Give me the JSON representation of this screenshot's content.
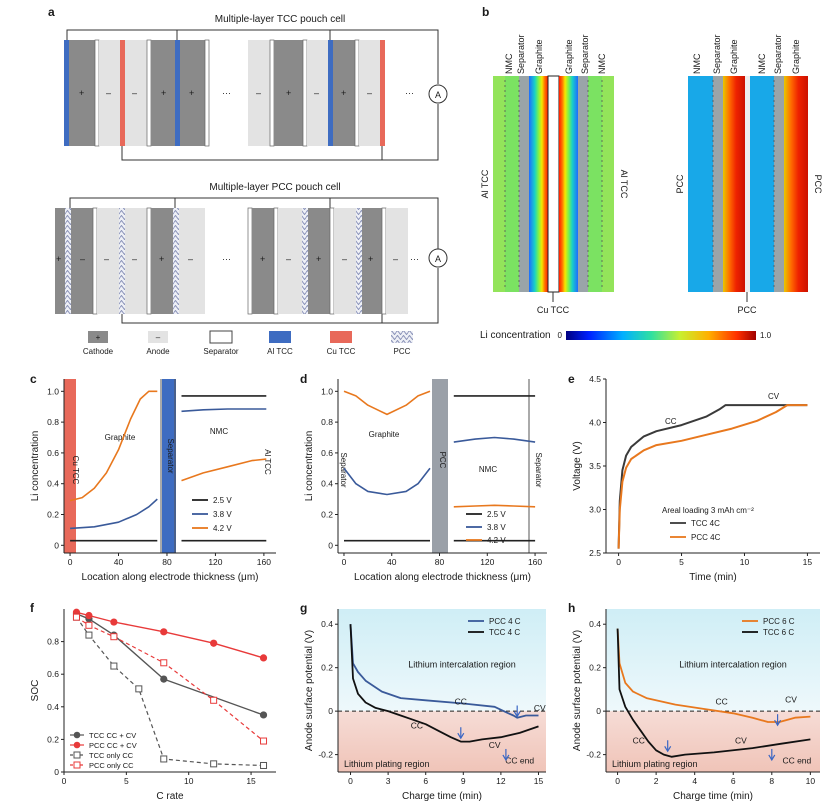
{
  "panels": {
    "a": {
      "label": "a",
      "tcc_title": "Multiple-layer TCC pouch cell",
      "pcc_title": "Multiple-layer PCC pouch cell",
      "plus": "+",
      "minus": "–",
      "ellipsis": "···",
      "ammeter": "A",
      "legend": [
        "Cathode",
        "Anode",
        "Separator",
        "Al TCC",
        "Cu TCC",
        "PCC"
      ]
    },
    "b": {
      "label": "b",
      "tcc_top_labels": [
        "NMC",
        "Separator",
        "Graphite",
        "Graphite",
        "Separator",
        "NMC"
      ],
      "pcc_top_labels": [
        "NMC",
        "Separator",
        "Graphite",
        "NMC",
        "Separator",
        "Graphite"
      ],
      "al_tcc": "Al TCC",
      "cu_tcc": "Cu TCC",
      "pcc": "PCC",
      "colorbar_label": "Li concentration",
      "colorbar_min": "0",
      "colorbar_max": "1.0"
    },
    "c": {
      "label": "c",
      "region_labels": {
        "cu": "Cu TCC",
        "graphite": "Graphite",
        "separator": "Separator",
        "nmc": "NMC",
        "al": "Al TCC"
      },
      "legend": [
        "2.5 V",
        "3.8 V",
        "4.2 V"
      ]
    },
    "d": {
      "label": "d",
      "region_labels": {
        "sep_left": "Separator",
        "graphite": "Graphite",
        "pcc": "PCC",
        "nmc": "NMC",
        "sep_right": "Separator"
      },
      "legend": [
        "2.5 V",
        "3.8 V",
        "4.2 V"
      ]
    },
    "e": {
      "label": "e",
      "cc": "CC",
      "cv": "CV",
      "note": "Areal loading 3 mAh cm⁻²",
      "legend": [
        "TCC 4C",
        "PCC 4C"
      ]
    },
    "f": {
      "label": "f",
      "legend": [
        "TCC CC + CV",
        "PCC CC + CV",
        "TCC only CC",
        "PCC only CC"
      ]
    },
    "g": {
      "label": "g",
      "legend": [
        "PCC 4 C",
        "TCC 4 C"
      ],
      "intercalation": "Lithium intercalation region",
      "plating": "Lithium plating region",
      "cc": "CC",
      "cv": "CV",
      "cc_end": "CC end"
    },
    "h": {
      "label": "h",
      "legend": [
        "PCC 6 C",
        "TCC 6 C"
      ],
      "intercalation": "Lithium intercalation region",
      "plating": "Lithium plating region",
      "cc": "CC",
      "cv": "CV",
      "cc_end": "CC end"
    }
  },
  "chart_data": [
    {
      "id": "c",
      "type": "line",
      "xlabel": "Location along electrode thickness (μm)",
      "ylabel": "Li concentration",
      "xlim": [
        -5,
        170
      ],
      "ylim": [
        -0.05,
        1.08
      ],
      "xticks": [
        0,
        40,
        80,
        120,
        160
      ],
      "yticks": [
        0,
        0.2,
        0.4,
        0.6,
        0.8,
        1.0
      ],
      "series": [
        {
          "name": "2.5 V",
          "color": "#222222",
          "segments": [
            [
              [
                0,
                0.03
              ],
              [
                72,
                0.03
              ]
            ],
            [
              [
                92,
                0.03
              ],
              [
                162,
                0.03
              ]
            ]
          ]
        },
        {
          "name": "3.8 V",
          "color": "#3a5a9a",
          "segments": [
            [
              [
                0,
                0.11
              ],
              [
                20,
                0.12
              ],
              [
                40,
                0.15
              ],
              [
                55,
                0.2
              ],
              [
                65,
                0.25
              ],
              [
                72,
                0.3
              ]
            ],
            [
              [
                92,
                0.87
              ],
              [
                110,
                0.88
              ],
              [
                130,
                0.885
              ],
              [
                150,
                0.885
              ],
              [
                162,
                0.885
              ]
            ]
          ]
        },
        {
          "name": "4.2 V",
          "color": "#e8781e",
          "segments": [
            [
              [
                0,
                0.29
              ],
              [
                10,
                0.31
              ],
              [
                20,
                0.37
              ],
              [
                30,
                0.47
              ],
              [
                40,
                0.62
              ],
              [
                50,
                0.82
              ],
              [
                58,
                0.95
              ],
              [
                65,
                1.0
              ],
              [
                72,
                1.0
              ]
            ],
            [
              [
                92,
                0.42
              ],
              [
                110,
                0.47
              ],
              [
                130,
                0.51
              ],
              [
                150,
                0.55
              ],
              [
                162,
                0.56
              ]
            ]
          ]
        },
        {
          "name": "upper",
          "color": "#222222",
          "segments": [
            [
              [
                92,
                0.97
              ],
              [
                162,
                0.97
              ]
            ]
          ]
        }
      ]
    },
    {
      "id": "d",
      "type": "line",
      "xlabel": "Location along electrode thickness (μm)",
      "ylabel": "Li concentration",
      "xlim": [
        -5,
        170
      ],
      "ylim": [
        -0.05,
        1.08
      ],
      "xticks": [
        0,
        40,
        80,
        120,
        160
      ],
      "yticks": [
        0,
        0.2,
        0.4,
        0.6,
        0.8,
        1.0
      ],
      "series": [
        {
          "name": "2.5 V",
          "color": "#222222",
          "segments": [
            [
              [
                0,
                0.03
              ],
              [
                72,
                0.03
              ]
            ],
            [
              [
                92,
                0.03
              ],
              [
                160,
                0.03
              ]
            ]
          ]
        },
        {
          "name": "3.8 V",
          "color": "#3a5a9a",
          "segments": [
            [
              [
                0,
                0.5
              ],
              [
                10,
                0.4
              ],
              [
                20,
                0.35
              ],
              [
                36,
                0.33
              ],
              [
                52,
                0.35
              ],
              [
                62,
                0.4
              ],
              [
                72,
                0.5
              ]
            ],
            [
              [
                92,
                0.67
              ],
              [
                110,
                0.69
              ],
              [
                126,
                0.7
              ],
              [
                142,
                0.69
              ],
              [
                160,
                0.67
              ]
            ]
          ]
        },
        {
          "name": "4.2 V",
          "color": "#e8781e",
          "segments": [
            [
              [
                0,
                1.0
              ],
              [
                10,
                0.97
              ],
              [
                20,
                0.91
              ],
              [
                36,
                0.85
              ],
              [
                52,
                0.91
              ],
              [
                62,
                0.97
              ],
              [
                72,
                1.0
              ]
            ],
            [
              [
                92,
                0.25
              ],
              [
                110,
                0.255
              ],
              [
                126,
                0.26
              ],
              [
                142,
                0.255
              ],
              [
                160,
                0.25
              ]
            ]
          ]
        },
        {
          "name": "upper",
          "color": "#222222",
          "segments": [
            [
              [
                92,
                0.97
              ],
              [
                160,
                0.97
              ]
            ]
          ]
        }
      ]
    },
    {
      "id": "e",
      "type": "line",
      "xlabel": "Time (min)",
      "ylabel": "Voltage (V)",
      "xlim": [
        -1,
        16
      ],
      "ylim": [
        2.5,
        4.5
      ],
      "xticks": [
        0,
        5,
        10,
        15
      ],
      "yticks": [
        2.5,
        3.0,
        3.5,
        4.0,
        4.5
      ],
      "series": [
        {
          "name": "TCC 4C",
          "color": "#3a3a3a",
          "points": [
            [
              0,
              2.55
            ],
            [
              0.1,
              3.1
            ],
            [
              0.3,
              3.45
            ],
            [
              0.6,
              3.62
            ],
            [
              1,
              3.72
            ],
            [
              2,
              3.84
            ],
            [
              3,
              3.9
            ],
            [
              5,
              3.97
            ],
            [
              7,
              4.07
            ],
            [
              8,
              4.15
            ],
            [
              8.5,
              4.2
            ],
            [
              15,
              4.2
            ]
          ]
        },
        {
          "name": "PCC 4C",
          "color": "#e8781e",
          "points": [
            [
              0,
              2.55
            ],
            [
              0.1,
              3.0
            ],
            [
              0.3,
              3.32
            ],
            [
              0.6,
              3.48
            ],
            [
              1,
              3.58
            ],
            [
              2,
              3.68
            ],
            [
              3,
              3.74
            ],
            [
              5,
              3.79
            ],
            [
              7,
              3.86
            ],
            [
              9,
              3.93
            ],
            [
              11,
              4.02
            ],
            [
              12.5,
              4.12
            ],
            [
              13.4,
              4.2
            ],
            [
              15,
              4.2
            ]
          ]
        }
      ]
    },
    {
      "id": "f",
      "type": "line",
      "xlabel": "C rate",
      "ylabel": "SOC",
      "xlim": [
        0,
        17
      ],
      "ylim": [
        0,
        1.0
      ],
      "xticks": [
        0,
        5,
        10,
        15
      ],
      "yticks": [
        0,
        0.2,
        0.4,
        0.6,
        0.8
      ],
      "series": [
        {
          "name": "TCC CC + CV",
          "color": "#555555",
          "style": "solid-filled",
          "x": [
            1,
            2,
            4,
            8,
            16
          ],
          "values": [
            0.97,
            0.94,
            0.84,
            0.57,
            0.35
          ]
        },
        {
          "name": "PCC CC + CV",
          "color": "#e83a3a",
          "style": "solid-filled",
          "x": [
            1,
            2,
            4,
            8,
            12,
            16
          ],
          "values": [
            0.98,
            0.96,
            0.92,
            0.86,
            0.79,
            0.7
          ]
        },
        {
          "name": "TCC only CC",
          "color": "#555555",
          "style": "dashed-open",
          "x": [
            1,
            2,
            4,
            6,
            8,
            12,
            16
          ],
          "values": [
            0.95,
            0.84,
            0.65,
            0.51,
            0.08,
            0.05,
            0.04
          ]
        },
        {
          "name": "PCC only CC",
          "color": "#e83a3a",
          "style": "dashed-open",
          "x": [
            1,
            2,
            4,
            8,
            12,
            16
          ],
          "values": [
            0.95,
            0.9,
            0.83,
            0.67,
            0.44,
            0.19
          ]
        }
      ]
    },
    {
      "id": "g",
      "type": "line",
      "xlabel": "Charge time (min)",
      "ylabel": "Anode surface potential (V)",
      "xlim": [
        -1,
        15.6
      ],
      "ylim": [
        -0.28,
        0.47
      ],
      "xticks": [
        0,
        3,
        6,
        9,
        12,
        15
      ],
      "yticks": [
        -0.2,
        0,
        0.2,
        0.4
      ],
      "series": [
        {
          "name": "PCC 4 C",
          "color": "#3a5a9a",
          "points": [
            [
              0,
              0.4
            ],
            [
              0.2,
              0.22
            ],
            [
              0.6,
              0.18
            ],
            [
              1.2,
              0.14
            ],
            [
              2.5,
              0.09
            ],
            [
              4,
              0.06
            ],
            [
              6,
              0.05
            ],
            [
              9,
              0.035
            ],
            [
              11.5,
              0.02
            ],
            [
              12.6,
              -0.01
            ],
            [
              13,
              -0.02
            ],
            [
              13.3,
              -0.03
            ],
            [
              14,
              -0.02
            ],
            [
              15,
              -0.02
            ]
          ]
        },
        {
          "name": "TCC 4 C",
          "color": "#111111",
          "points": [
            [
              0,
              0.4
            ],
            [
              0.2,
              0.15
            ],
            [
              0.6,
              0.08
            ],
            [
              1.2,
              0.04
            ],
            [
              2,
              0.015
            ],
            [
              3,
              0.0
            ],
            [
              4,
              -0.02
            ],
            [
              5,
              -0.04
            ],
            [
              6,
              -0.06
            ],
            [
              7,
              -0.09
            ],
            [
              8,
              -0.12
            ],
            [
              8.8,
              -0.14
            ],
            [
              9.5,
              -0.14
            ],
            [
              10.5,
              -0.13
            ],
            [
              12,
              -0.12
            ],
            [
              13.5,
              -0.1
            ],
            [
              15,
              -0.07
            ]
          ]
        }
      ]
    },
    {
      "id": "h",
      "type": "line",
      "xlabel": "Charge time (min)",
      "ylabel": "Anode surface potential (V)",
      "xlim": [
        -0.6,
        10.5
      ],
      "ylim": [
        -0.28,
        0.47
      ],
      "xticks": [
        0,
        2,
        4,
        6,
        8,
        10
      ],
      "yticks": [
        -0.2,
        0,
        0.2,
        0.4
      ],
      "series": [
        {
          "name": "PCC 6 C",
          "color": "#e8781e",
          "points": [
            [
              0,
              0.38
            ],
            [
              0.1,
              0.22
            ],
            [
              0.4,
              0.13
            ],
            [
              0.8,
              0.09
            ],
            [
              1.5,
              0.06
            ],
            [
              3,
              0.03
            ],
            [
              4.5,
              0.01
            ],
            [
              6,
              -0.01
            ],
            [
              7,
              -0.03
            ],
            [
              7.8,
              -0.05
            ],
            [
              8.4,
              -0.05
            ],
            [
              9.2,
              -0.03
            ],
            [
              10,
              -0.025
            ]
          ]
        },
        {
          "name": "TCC 6 C",
          "color": "#111111",
          "points": [
            [
              0,
              0.38
            ],
            [
              0.1,
              0.1
            ],
            [
              0.4,
              0.02
            ],
            [
              0.8,
              -0.04
            ],
            [
              1.2,
              -0.09
            ],
            [
              1.6,
              -0.14
            ],
            [
              2,
              -0.18
            ],
            [
              2.4,
              -0.2
            ],
            [
              2.8,
              -0.21
            ],
            [
              3.5,
              -0.2
            ],
            [
              5,
              -0.19
            ],
            [
              7,
              -0.17
            ],
            [
              8.5,
              -0.15
            ],
            [
              10,
              -0.13
            ]
          ]
        }
      ]
    }
  ]
}
